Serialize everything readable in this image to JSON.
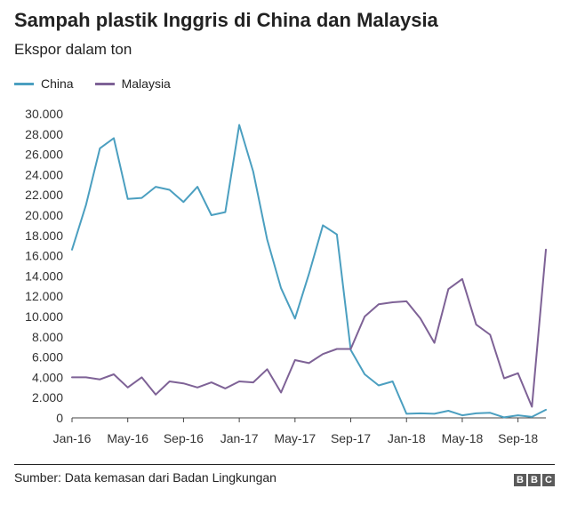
{
  "header": {
    "title": "Sampah plastik Inggris di China dan Malaysia",
    "subtitle": "Ekspor dalam ton"
  },
  "footer": {
    "source": "Sumber: Data kemasan dari Badan Lingkungan",
    "logo_letters": [
      "B",
      "B",
      "C"
    ]
  },
  "chart_data": {
    "type": "line",
    "xlabel": "",
    "ylabel": "",
    "ylim": [
      0,
      30000
    ],
    "ytick_values": [
      0,
      2000,
      4000,
      6000,
      8000,
      10000,
      12000,
      14000,
      16000,
      18000,
      20000,
      22000,
      24000,
      26000,
      28000,
      30000
    ],
    "ytick_labels": [
      "0",
      "2.000",
      "4.000",
      "6.000",
      "8.000",
      "10.000",
      "12.000",
      "14.000",
      "16.000",
      "18.000",
      "20.000",
      "22.000",
      "24.000",
      "26.000",
      "28.000",
      "30.000"
    ],
    "x": [
      "Jan-16",
      "Feb-16",
      "Mar-16",
      "Apr-16",
      "May-16",
      "Jun-16",
      "Jul-16",
      "Aug-16",
      "Sep-16",
      "Oct-16",
      "Nov-16",
      "Dec-16",
      "Jan-17",
      "Feb-17",
      "Mar-17",
      "Apr-17",
      "May-17",
      "Jun-17",
      "Jul-17",
      "Aug-17",
      "Sep-17",
      "Oct-17",
      "Nov-17",
      "Dec-17",
      "Jan-18",
      "Feb-18",
      "Mar-18",
      "Apr-18",
      "May-18",
      "Jun-18",
      "Jul-18",
      "Aug-18",
      "Sep-18",
      "Oct-18",
      "Nov-18"
    ],
    "xtick_labels": [
      "Jan-16",
      "May-16",
      "Sep-16",
      "Jan-17",
      "May-17",
      "Sep-17",
      "Jan-18",
      "May-18",
      "Sep-18"
    ],
    "grid": false,
    "legend_position": "top-left",
    "series": [
      {
        "name": "China",
        "color": "#4b9fc0",
        "values": [
          16600,
          21000,
          26600,
          27600,
          21600,
          21700,
          22800,
          22500,
          21300,
          22800,
          20000,
          20300,
          28900,
          24300,
          17600,
          12800,
          9800,
          14200,
          19000,
          18100,
          6700,
          4300,
          3200,
          3600,
          400,
          450,
          400,
          700,
          250,
          450,
          500,
          50,
          250,
          100,
          800
        ]
      },
      {
        "name": "Malaysia",
        "color": "#7e6296",
        "values": [
          4000,
          4000,
          3800,
          4300,
          3000,
          4000,
          2300,
          3600,
          3400,
          3000,
          3500,
          2900,
          3600,
          3500,
          4800,
          2500,
          5700,
          5400,
          6300,
          6800,
          6800,
          10000,
          11200,
          11400,
          11500,
          9800,
          7400,
          12700,
          13700,
          9200,
          8200,
          3900,
          4400,
          1100,
          16600
        ]
      }
    ]
  }
}
